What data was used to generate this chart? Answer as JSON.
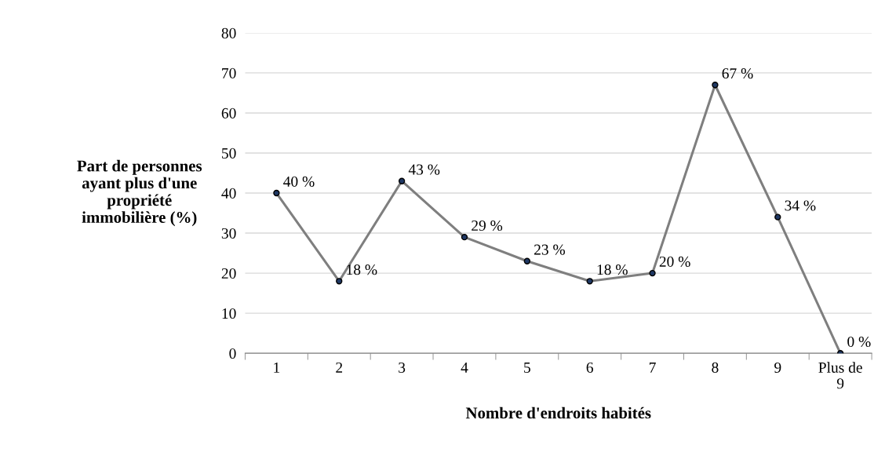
{
  "chart_data": {
    "type": "line",
    "xlabel": "Nombre d'endroits habités",
    "ylabel": "Part de personnes\nayant plus d'une\npropriété\nimmobilière (%)",
    "categories": [
      "1",
      "2",
      "3",
      "4",
      "5",
      "6",
      "7",
      "8",
      "9",
      "Plus de\n9"
    ],
    "series": [
      {
        "color": "#7f7f7f",
        "values": [
          40,
          18,
          43,
          29,
          23,
          18,
          20,
          67,
          34,
          0
        ],
        "value_labels": [
          "40 %",
          "18 %",
          "43 %",
          "29 %",
          "23 %",
          "18 %",
          "20 %",
          "67 %",
          "34 %",
          "0 %"
        ]
      }
    ],
    "ylim": [
      0,
      80
    ],
    "yticks": [
      0,
      10,
      20,
      30,
      40,
      50,
      60,
      70,
      80
    ],
    "grid": "y",
    "marker": "circle",
    "line_style": "solid",
    "legend": false
  }
}
